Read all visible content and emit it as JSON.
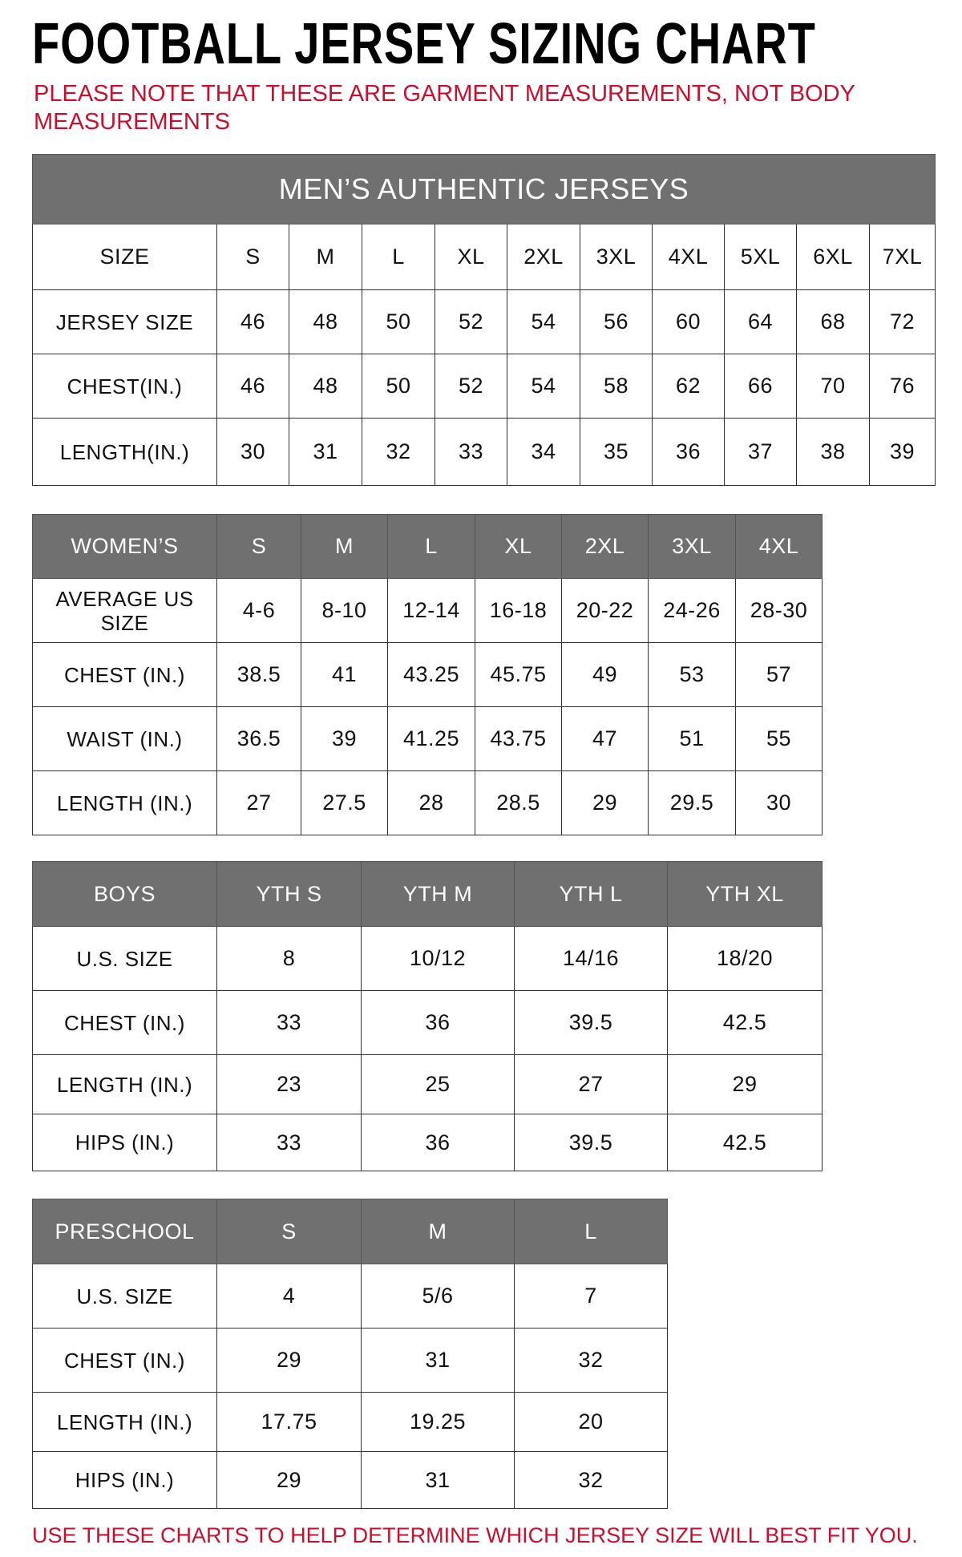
{
  "title": "FOOTBALL JERSEY SIZING CHART",
  "note": "PLEASE NOTE THAT THESE ARE GARMENT MEASUREMENTS, NOT BODY MEASUREMENTS",
  "footer": "USE THESE CHARTS TO HELP DETERMINE WHICH JERSEY SIZE WILL BEST FIT YOU.",
  "colors": {
    "header_bg": "#707070",
    "accent_red": "#c8102e"
  },
  "tables": [
    {
      "caption": "MEN’S AUTHENTIC JERSEYS",
      "header": [
        "SIZE",
        "S",
        "M",
        "L",
        "XL",
        "2XL",
        "3XL",
        "4XL",
        "5XL",
        "6XL",
        "7XL"
      ],
      "header_plain": true,
      "rows": [
        [
          "JERSEY SIZE",
          "46",
          "48",
          "50",
          "52",
          "54",
          "56",
          "60",
          "64",
          "68",
          "72"
        ],
        [
          "CHEST(IN.)",
          "46",
          "48",
          "50",
          "52",
          "54",
          "58",
          "62",
          "66",
          "70",
          "76"
        ],
        [
          "LENGTH(IN.)",
          "30",
          "31",
          "32",
          "33",
          "34",
          "35",
          "36",
          "37",
          "38",
          "39"
        ]
      ]
    },
    {
      "header": [
        "WOMEN’S",
        "S",
        "M",
        "L",
        "XL",
        "2XL",
        "3XL",
        "4XL"
      ],
      "rows": [
        [
          "AVERAGE US SIZE",
          "4-6",
          "8-10",
          "12-14",
          "16-18",
          "20-22",
          "24-26",
          "28-30"
        ],
        [
          "CHEST (IN.)",
          "38.5",
          "41",
          "43.25",
          "45.75",
          "49",
          "53",
          "57"
        ],
        [
          "WAIST (IN.)",
          "36.5",
          "39",
          "41.25",
          "43.75",
          "47",
          "51",
          "55"
        ],
        [
          "LENGTH (IN.)",
          "27",
          "27.5",
          "28",
          "28.5",
          "29",
          "29.5",
          "30"
        ]
      ]
    },
    {
      "header": [
        "BOYS",
        "YTH S",
        "YTH M",
        "YTH L",
        "YTH XL"
      ],
      "rows": [
        [
          "U.S. SIZE",
          "8",
          "10/12",
          "14/16",
          "18/20"
        ],
        [
          "CHEST (IN.)",
          "33",
          "36",
          "39.5",
          "42.5"
        ],
        [
          "LENGTH (IN.)",
          "23",
          "25",
          "27",
          "29"
        ],
        [
          "HIPS (IN.)",
          "33",
          "36",
          "39.5",
          "42.5"
        ]
      ]
    },
    {
      "header": [
        "PRESCHOOL",
        "S",
        "M",
        "L"
      ],
      "rows": [
        [
          "U.S. SIZE",
          "4",
          "5/6",
          "7"
        ],
        [
          "CHEST (IN.)",
          "29",
          "31",
          "32"
        ],
        [
          "LENGTH (IN.)",
          "17.75",
          "19.25",
          "20"
        ],
        [
          "HIPS (IN.)",
          "29",
          "31",
          "32"
        ]
      ]
    }
  ]
}
